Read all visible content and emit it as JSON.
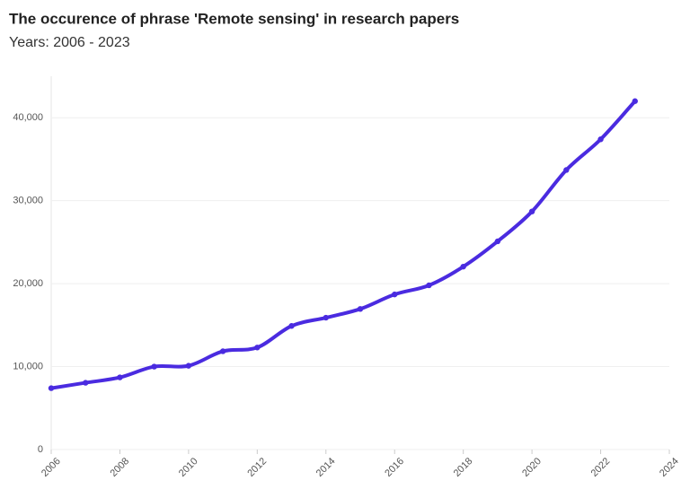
{
  "chart_data": {
    "type": "line",
    "title": "The occurence of phrase 'Remote sensing' in research papers",
    "subtitle": "Years: 2006 - 2023",
    "x": [
      2006,
      2007,
      2008,
      2009,
      2010,
      2011,
      2012,
      2013,
      2014,
      2015,
      2016,
      2017,
      2018,
      2019,
      2020,
      2021,
      2022,
      2023
    ],
    "series": [
      {
        "name": "Remote sensing",
        "color": "#4a2be0",
        "values": [
          7400,
          8050,
          8700,
          10000,
          10100,
          11850,
          12300,
          14900,
          15900,
          16950,
          18700,
          19800,
          22050,
          25100,
          28700,
          33700,
          37400,
          42000
        ]
      }
    ],
    "xlim": [
      2006,
      2024
    ],
    "xticks": [
      2006,
      2008,
      2010,
      2012,
      2014,
      2016,
      2018,
      2020,
      2022,
      2024
    ],
    "ylim": [
      0,
      45000
    ],
    "yticks": [
      0,
      {
        "value": 10000,
        "label": "10,000"
      },
      {
        "value": 20000,
        "label": "20,000"
      },
      {
        "value": 30000,
        "label": "30,000"
      },
      {
        "value": 40000,
        "label": "40,000"
      }
    ],
    "grid": true
  }
}
